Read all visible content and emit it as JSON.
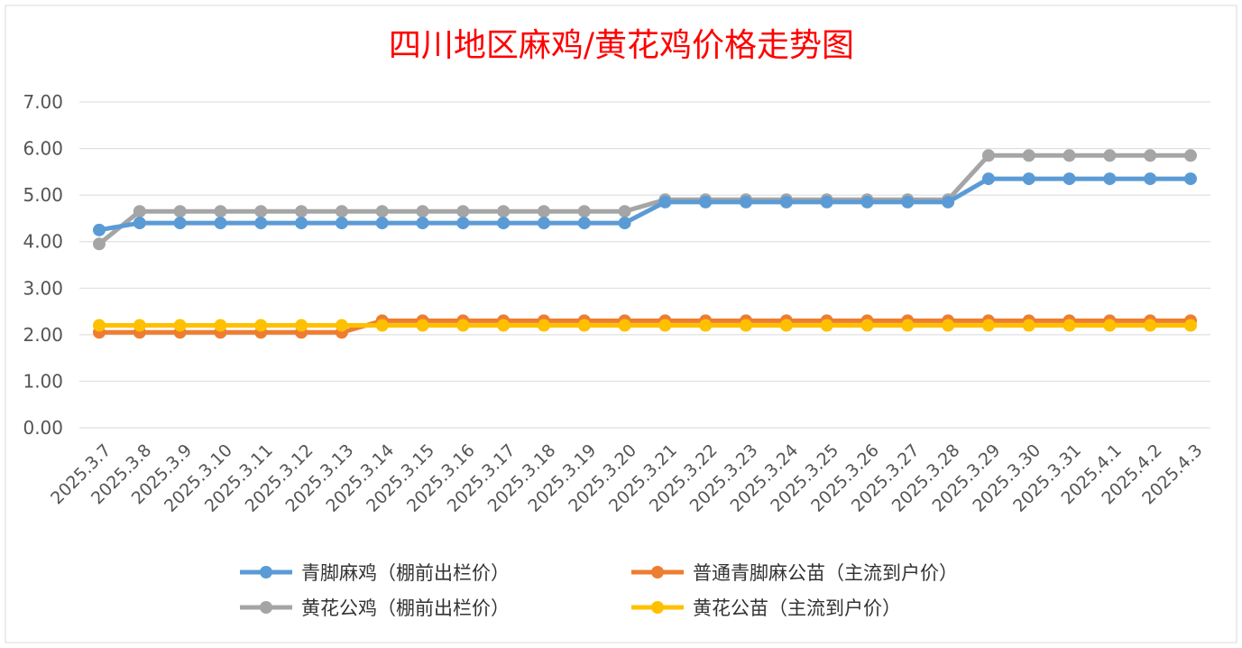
{
  "chart_data": {
    "type": "line",
    "title": "四川地区麻鸡/黄花鸡价格走势图",
    "xlabel": "",
    "ylabel": "",
    "ylim": [
      0,
      7
    ],
    "yticks": [
      "0.00",
      "1.00",
      "2.00",
      "3.00",
      "4.00",
      "5.00",
      "6.00",
      "7.00"
    ],
    "grid": true,
    "legend_position": "bottom",
    "categories": [
      "2025.3.7",
      "2025.3.8",
      "2025.3.9",
      "2025.3.10",
      "2025.3.11",
      "2025.3.12",
      "2025.3.13",
      "2025.3.14",
      "2025.3.15",
      "2025.3.16",
      "2025.3.17",
      "2025.3.18",
      "2025.3.19",
      "2025.3.20",
      "2025.3.21",
      "2025.3.22",
      "2025.3.23",
      "2025.3.24",
      "2025.3.25",
      "2025.3.26",
      "2025.3.27",
      "2025.3.28",
      "2025.3.29",
      "2025.3.30",
      "2025.3.31",
      "2025.4.1",
      "2025.4.2",
      "2025.4.3"
    ],
    "series": [
      {
        "name": "青脚麻鸡（棚前出栏价）",
        "color": "#5b9bd5",
        "values": [
          4.25,
          4.4,
          4.4,
          4.4,
          4.4,
          4.4,
          4.4,
          4.4,
          4.4,
          4.4,
          4.4,
          4.4,
          4.4,
          4.4,
          4.85,
          4.85,
          4.85,
          4.85,
          4.85,
          4.85,
          4.85,
          4.85,
          5.35,
          5.35,
          5.35,
          5.35,
          5.35,
          5.35
        ]
      },
      {
        "name": "普通青脚麻公苗（主流到户价）",
        "color": "#ed7d31",
        "values": [
          2.05,
          2.05,
          2.05,
          2.05,
          2.05,
          2.05,
          2.05,
          2.3,
          2.3,
          2.3,
          2.3,
          2.3,
          2.3,
          2.3,
          2.3,
          2.3,
          2.3,
          2.3,
          2.3,
          2.3,
          2.3,
          2.3,
          2.3,
          2.3,
          2.3,
          2.3,
          2.3,
          2.3
        ]
      },
      {
        "name": "黄花公鸡（棚前出栏价）",
        "color": "#a5a5a5",
        "values": [
          3.95,
          4.65,
          4.65,
          4.65,
          4.65,
          4.65,
          4.65,
          4.65,
          4.65,
          4.65,
          4.65,
          4.65,
          4.65,
          4.65,
          4.9,
          4.9,
          4.9,
          4.9,
          4.9,
          4.9,
          4.9,
          4.9,
          5.85,
          5.85,
          5.85,
          5.85,
          5.85,
          5.85
        ]
      },
      {
        "name": "黄花公苗（主流到户价）",
        "color": "#ffc000",
        "values": [
          2.2,
          2.2,
          2.2,
          2.2,
          2.2,
          2.2,
          2.2,
          2.2,
          2.2,
          2.2,
          2.2,
          2.2,
          2.2,
          2.2,
          2.2,
          2.2,
          2.2,
          2.2,
          2.2,
          2.2,
          2.2,
          2.2,
          2.2,
          2.2,
          2.2,
          2.2,
          2.2,
          2.2
        ]
      }
    ]
  }
}
